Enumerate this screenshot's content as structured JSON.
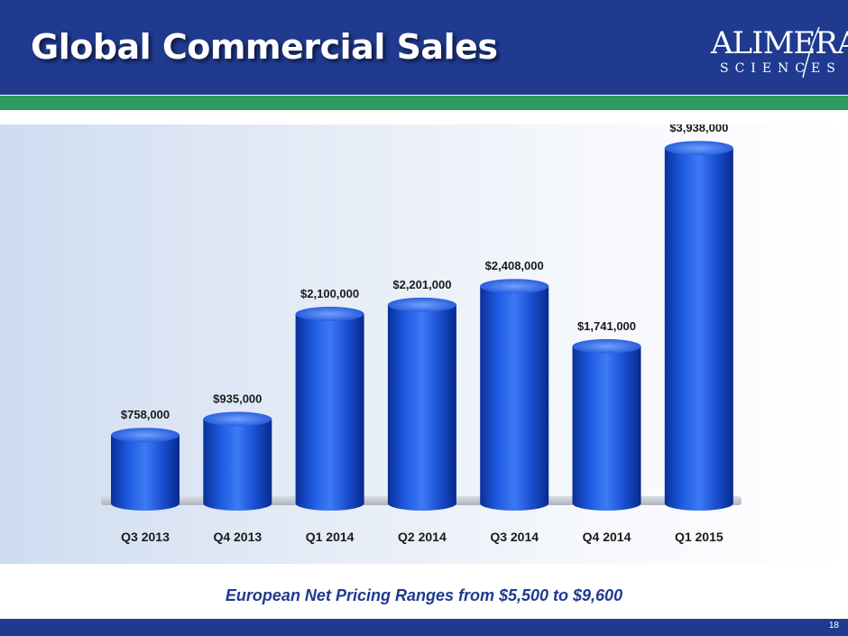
{
  "slide": {
    "title": "Global Commercial Sales",
    "footnote": "European Net Pricing Ranges from $5,500 to $9,600",
    "page_number": "18"
  },
  "logo": {
    "text": "ALIMERA",
    "subtext": "SCIENCES"
  },
  "colors": {
    "header": "#1f3a8f",
    "accent_green": "#2e9a5c",
    "bar": "#1a4fd0"
  },
  "chart_data": {
    "type": "bar",
    "title": "",
    "xlabel": "",
    "ylabel": "",
    "categories": [
      "Q3 2013",
      "Q4 2013",
      "Q1 2014",
      "Q2 2014",
      "Q3 2014",
      "Q4 2014",
      "Q1 2015"
    ],
    "values": [
      758000,
      935000,
      2100000,
      2201000,
      2408000,
      1741000,
      3938000
    ],
    "data_labels": [
      "$758,000",
      "$935,000",
      "$2,100,000",
      "$2,201,000",
      "$2,408,000",
      "$1,741,000",
      "$3,938,000"
    ],
    "ylim": [
      0,
      4000000
    ],
    "grid": false,
    "legend": "none",
    "bar_style": "3d-cylinder"
  }
}
